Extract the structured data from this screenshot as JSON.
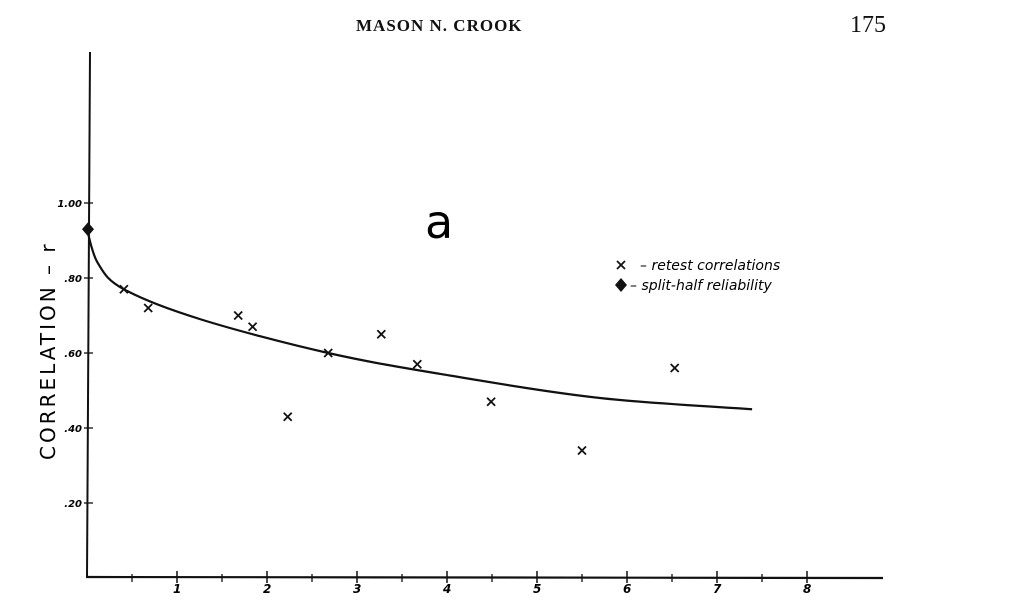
{
  "header": {
    "author": "MASON N. CROOK",
    "page_number": "175"
  },
  "chart_data": {
    "type": "scatter",
    "panel_label": "a",
    "ylabel": "CORRELATION – r",
    "xlabel": "",
    "xlim": [
      0,
      8.8
    ],
    "ylim": [
      0,
      1.25
    ],
    "x_ticks": [
      "1",
      "2",
      "3",
      "4",
      "5",
      "6",
      "7",
      "8"
    ],
    "x_tick_values": [
      1,
      2,
      3,
      4,
      5,
      6,
      7,
      8
    ],
    "y_ticks": [
      ".20",
      ".40",
      ".60",
      ".80",
      "1.00"
    ],
    "y_tick_values": [
      0.2,
      0.4,
      0.6,
      0.8,
      1.0
    ],
    "legend": {
      "placement": "right",
      "entries": [
        {
          "marker": "x",
          "label": "– retest correlations"
        },
        {
          "marker": "diamond",
          "label": "– split-half reliability"
        }
      ]
    },
    "series": [
      {
        "name": "retest correlations",
        "marker": "x",
        "points": [
          [
            0.41,
            0.77
          ],
          [
            0.68,
            0.72
          ],
          [
            1.68,
            0.7
          ],
          [
            1.84,
            0.67
          ],
          [
            2.23,
            0.43
          ],
          [
            2.68,
            0.6
          ],
          [
            3.27,
            0.65
          ],
          [
            3.67,
            0.57
          ],
          [
            4.49,
            0.47
          ],
          [
            5.5,
            0.34
          ],
          [
            6.53,
            0.56
          ]
        ]
      },
      {
        "name": "split-half reliability",
        "marker": "diamond",
        "points": [
          [
            0,
            0.93
          ]
        ]
      },
      {
        "name": "",
        "type": "line",
        "points": [
          [
            0,
            0.93
          ],
          [
            0.12,
            0.84
          ],
          [
            0.41,
            0.77
          ],
          [
            1.26,
            0.69
          ],
          [
            2.68,
            0.6
          ],
          [
            4.03,
            0.54
          ],
          [
            5.7,
            0.48
          ],
          [
            7.39,
            0.45
          ]
        ]
      }
    ],
    "grid": false
  }
}
